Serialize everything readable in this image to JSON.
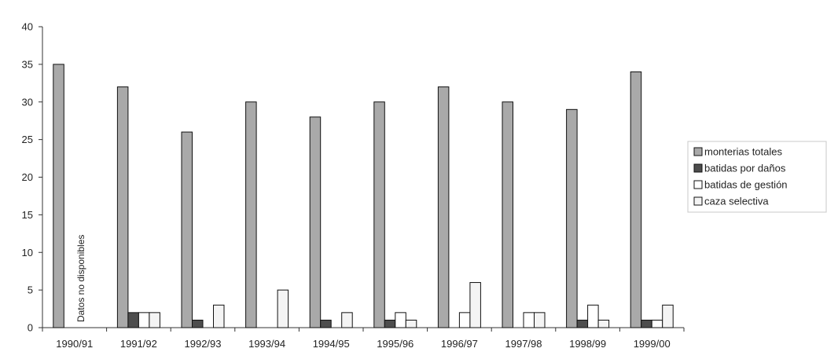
{
  "chart_data": {
    "type": "bar",
    "title": "",
    "xlabel": "",
    "ylabel": "",
    "ylim": [
      0,
      40
    ],
    "yticks": [
      0,
      5,
      10,
      15,
      20,
      25,
      30,
      35,
      40
    ],
    "grid": false,
    "legend_position": "right",
    "categories": [
      "1990/91",
      "1991/92",
      "1992/93",
      "1993/94",
      "1994/95",
      "1995/96",
      "1996/97",
      "1997/98",
      "1998/99",
      "1999/00"
    ],
    "series": [
      {
        "name": "monterias totales",
        "color": "#a9a9a9",
        "values": [
          35,
          32,
          26,
          30,
          28,
          30,
          32,
          30,
          29,
          34
        ]
      },
      {
        "name": "batidas por daños",
        "color": "#4d4d4d",
        "values": [
          null,
          2,
          1,
          0,
          1,
          1,
          0,
          0,
          1,
          1
        ]
      },
      {
        "name": "batidas de gestión",
        "color": "#ffffff",
        "values": [
          null,
          2,
          0,
          0,
          0,
          2,
          2,
          2,
          3,
          1
        ]
      },
      {
        "name": "caza selectiva",
        "color": "#f4f4f4",
        "values": [
          null,
          2,
          3,
          5,
          2,
          1,
          6,
          2,
          1,
          3
        ]
      }
    ],
    "annotations": [
      {
        "text": "Datos no disponibles",
        "category": "1990/91"
      }
    ]
  }
}
